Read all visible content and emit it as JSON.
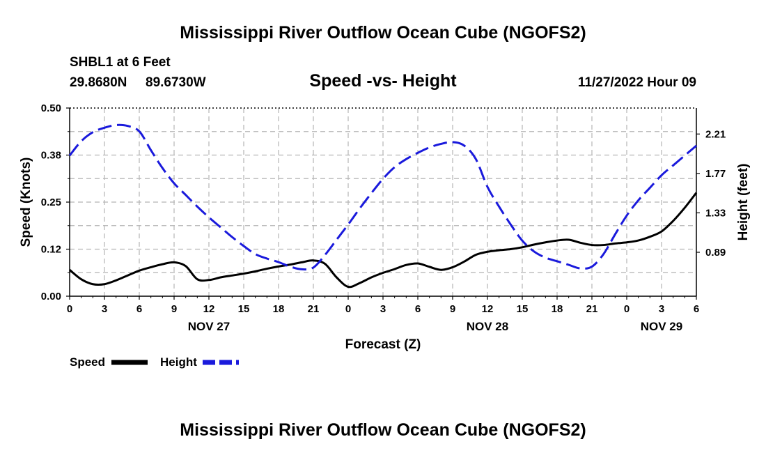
{
  "title": "Mississippi River Outflow Ocean Cube (NGOFS2)",
  "footer_title": "Mississippi River Outflow Ocean Cube (NGOFS2)",
  "station": {
    "name": "SHBL1 at 6 Feet",
    "lat": "29.8680N",
    "lon": "89.6730W"
  },
  "timestamp": "11/27/2022 Hour 09",
  "colors": {
    "speed": "#000000",
    "height": "#1a1adc",
    "grid": "#b4b4b4"
  },
  "chart_data": {
    "type": "line",
    "title": "Speed -vs- Height",
    "xlabel": "Forecast (Z)",
    "ylabel": "Speed (Knots)",
    "y2label": "Height (feet)",
    "xlim": [
      0,
      54
    ],
    "ylim": [
      0,
      0.5
    ],
    "y2lim": [
      0.4,
      2.5
    ],
    "x_ticks": [
      0,
      3,
      6,
      9,
      12,
      15,
      18,
      21,
      24,
      27,
      30,
      33,
      36,
      39,
      42,
      45,
      48,
      51,
      54
    ],
    "x_tick_labels": [
      "0",
      "3",
      "6",
      "9",
      "12",
      "15",
      "18",
      "21",
      "0",
      "3",
      "6",
      "9",
      "12",
      "15",
      "18",
      "21",
      "0",
      "3",
      "6"
    ],
    "y_ticks": [
      0,
      0.125,
      0.25,
      0.375,
      0.5
    ],
    "y_tick_labels": [
      "0.00",
      "0.12",
      "0.25",
      "0.38",
      "0.50"
    ],
    "y2_ticks": [
      0.89,
      1.33,
      1.77,
      2.21
    ],
    "y2_tick_labels": [
      "0.89",
      "1.33",
      "1.77",
      "2.21"
    ],
    "day_labels": [
      {
        "label": "NOV 27",
        "x": 12
      },
      {
        "label": "NOV 28",
        "x": 36
      },
      {
        "label": "NOV 29",
        "x": 51
      }
    ],
    "series": [
      {
        "name": "Speed",
        "axis": "left",
        "style": "solid",
        "x": [
          0,
          1,
          2,
          3,
          4,
          5,
          6,
          7,
          8,
          9,
          10,
          11,
          12,
          13,
          14,
          15,
          16,
          17,
          18,
          19,
          20,
          21,
          22,
          23,
          24,
          25,
          26,
          27,
          28,
          29,
          30,
          31,
          32,
          33,
          34,
          35,
          36,
          37,
          38,
          39,
          40,
          41,
          42,
          43,
          44,
          45,
          46,
          47,
          48,
          49,
          50,
          51,
          52,
          53,
          54
        ],
        "values": [
          0.07,
          0.045,
          0.032,
          0.032,
          0.042,
          0.055,
          0.068,
          0.077,
          0.085,
          0.09,
          0.08,
          0.045,
          0.043,
          0.05,
          0.055,
          0.06,
          0.066,
          0.073,
          0.079,
          0.084,
          0.09,
          0.095,
          0.086,
          0.05,
          0.025,
          0.035,
          0.05,
          0.062,
          0.072,
          0.083,
          0.087,
          0.078,
          0.07,
          0.077,
          0.092,
          0.11,
          0.118,
          0.122,
          0.125,
          0.13,
          0.137,
          0.143,
          0.148,
          0.15,
          0.142,
          0.136,
          0.136,
          0.14,
          0.143,
          0.148,
          0.158,
          0.172,
          0.2,
          0.235,
          0.275
        ]
      },
      {
        "name": "Height",
        "axis": "right",
        "style": "dashed",
        "x": [
          0,
          1,
          2,
          3,
          4,
          5,
          6,
          7,
          8,
          9,
          10,
          11,
          12,
          13,
          14,
          15,
          16,
          17,
          18,
          19,
          20,
          21,
          22,
          23,
          24,
          25,
          26,
          27,
          28,
          29,
          30,
          31,
          32,
          33,
          34,
          35,
          36,
          37,
          38,
          39,
          40,
          41,
          42,
          43,
          44,
          45,
          46,
          47,
          48,
          49,
          50,
          51,
          52,
          53,
          54
        ],
        "values": [
          1.97,
          2.13,
          2.23,
          2.28,
          2.31,
          2.3,
          2.24,
          2.03,
          1.83,
          1.66,
          1.53,
          1.4,
          1.28,
          1.17,
          1.06,
          0.96,
          0.87,
          0.82,
          0.78,
          0.73,
          0.7,
          0.72,
          0.86,
          1.03,
          1.2,
          1.38,
          1.55,
          1.71,
          1.84,
          1.93,
          2.0,
          2.06,
          2.1,
          2.12,
          2.08,
          1.93,
          1.62,
          1.4,
          1.2,
          1.02,
          0.9,
          0.83,
          0.79,
          0.75,
          0.71,
          0.73,
          0.87,
          1.09,
          1.3,
          1.47,
          1.61,
          1.75,
          1.86,
          1.97,
          2.08
        ]
      }
    ],
    "legend": [
      {
        "label": "Speed",
        "style": "solid"
      },
      {
        "label": "Height",
        "style": "dashed"
      }
    ]
  }
}
